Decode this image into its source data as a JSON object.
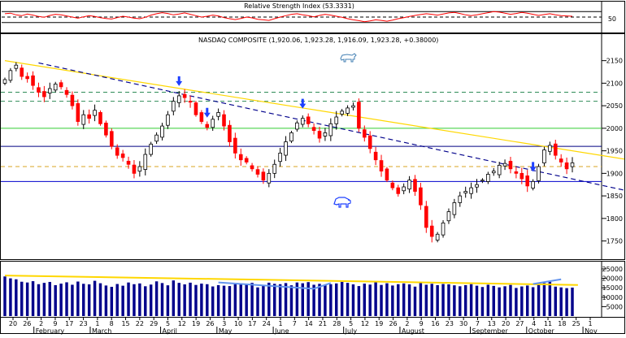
{
  "chart_data": [
    {
      "type": "line",
      "title": "Relative Strength Index (53.3331)",
      "ylim": [
        0,
        100
      ],
      "reference_lines": [
        70,
        50,
        30
      ],
      "y_ticks": [
        "50"
      ],
      "series": [
        {
          "values": [
            62,
            64,
            58,
            55,
            61,
            57,
            52,
            49,
            56,
            60,
            58,
            54,
            50,
            46,
            51,
            55,
            52,
            48,
            45,
            43,
            48,
            53,
            50,
            46,
            44,
            49,
            57,
            62,
            66,
            63,
            58,
            61,
            65,
            60,
            55,
            50,
            53,
            57,
            54,
            48,
            44,
            41,
            45,
            50,
            47,
            42,
            40,
            38,
            44,
            50,
            55,
            60,
            62,
            58,
            55,
            51,
            56,
            60,
            57,
            53,
            49,
            44,
            40,
            37,
            33,
            36,
            40,
            38,
            35,
            39,
            44,
            48,
            52,
            56,
            59,
            62,
            60,
            57,
            61,
            65,
            67,
            63,
            58,
            55,
            58,
            62,
            66,
            70,
            68,
            64,
            60,
            63,
            67,
            64,
            60,
            56,
            59,
            62,
            58,
            55,
            54,
            53
          ]
        }
      ]
    },
    {
      "type": "candlestick",
      "title": "NASDAQ COMPOSITE (1,920.06, 1,923.28, 1,916.09, 1,923.28, +0.38000)",
      "ylim": [
        1715,
        2180
      ],
      "y_ticks": [
        2150,
        2100,
        2050,
        2000,
        1950,
        1900,
        1850,
        1800,
        1750
      ],
      "grid": true,
      "horizontal_lines": [
        {
          "value": 2080,
          "style": "dashed",
          "color": "#2e8b57"
        },
        {
          "value": 2060,
          "style": "dashed",
          "color": "#2e8b57"
        },
        {
          "value": 2000,
          "style": "solid",
          "color": "#32cd32"
        },
        {
          "value": 1960,
          "style": "solid",
          "color": "#000080"
        },
        {
          "value": 1915,
          "style": "dashed",
          "color": "#daa520"
        },
        {
          "value": 1882,
          "style": "solid",
          "color": "#0000cd"
        }
      ],
      "trendlines": [
        {
          "from": [
            0,
            2150
          ],
          "to": [
            102,
            1948
          ],
          "color": "#ffd700",
          "style": "solid"
        },
        {
          "from": [
            6,
            2145
          ],
          "to": [
            102,
            1885
          ],
          "color": "#00008b",
          "style": "dashed"
        }
      ],
      "closes": [
        2108,
        2128,
        2140,
        2115,
        2110,
        2095,
        2080,
        2070,
        2088,
        2098,
        2092,
        2075,
        2050,
        2015,
        2030,
        2022,
        2040,
        2010,
        1985,
        1960,
        1940,
        1935,
        1920,
        1900,
        1915,
        1942,
        1965,
        1985,
        2005,
        2030,
        2060,
        2072,
        2068,
        2058,
        2030,
        2015,
        2002,
        2020,
        2035,
        2005,
        1970,
        1945,
        1930,
        1925,
        1910,
        1898,
        1885,
        1900,
        1920,
        1945,
        1970,
        1990,
        2012,
        2022,
        2010,
        1995,
        1978,
        1990,
        2010,
        2025,
        2038,
        2045,
        2050,
        2000,
        1980,
        1955,
        1930,
        1905,
        1885,
        1868,
        1855,
        1870,
        1885,
        1860,
        1830,
        1780,
        1760,
        1765,
        1790,
        1815,
        1835,
        1850,
        1860,
        1868,
        1875,
        1885,
        1898,
        1905,
        1918,
        1922,
        1910,
        1900,
        1888,
        1872,
        1882,
        1915,
        1952,
        1962,
        1940,
        1925,
        1910,
        1923.28
      ]
    },
    {
      "type": "bar",
      "title": "",
      "ylim": [
        0,
        28000
      ],
      "y_ticks": [
        25000,
        20000,
        15000,
        10000,
        5000
      ],
      "series": [
        {
          "values": [
            21000,
            20000,
            19500,
            18200,
            17800,
            18500,
            16900,
            17600,
            18100,
            16400,
            17200,
            17900,
            16600,
            18300,
            17100,
            16800,
            18700,
            17400,
            16200,
            15500,
            17000,
            16100,
            17800,
            16900,
            17300,
            15800,
            16700,
            18400,
            17500,
            16300,
            18900,
            17600,
            16800,
            17700,
            16500,
            17200,
            16900,
            15700,
            16400,
            16100,
            15900,
            16800,
            17300,
            16700,
            17600,
            15200,
            16500,
            17700,
            17100,
            16900,
            17500,
            16300,
            17800,
            17400,
            18000,
            16600,
            17100,
            16400,
            16900,
            17300,
            18100,
            17600,
            16800,
            15900,
            17200,
            16700,
            17900,
            16500,
            17400,
            16200,
            16900,
            17300,
            16800,
            15600,
            17500,
            16600,
            17100,
            16400,
            17000,
            16800,
            16300,
            15800,
            16400,
            16900,
            16100,
            15400,
            16600,
            16000,
            15200,
            15800,
            16500,
            14900,
            15700,
            16200,
            15300,
            16800,
            17500,
            18200,
            15600,
            15200,
            14800,
            15100
          ]
        }
      ],
      "overlay_lines": [
        {
          "from": [
            0,
            21500
          ],
          "to": [
            102,
            16500
          ],
          "color": "#ffd700"
        },
        {
          "from": [
            38,
            17800
          ],
          "to": [
            55,
            14500
          ],
          "color": "#6495ed"
        },
        {
          "from": [
            55,
            14500
          ],
          "to": [
            58,
            17500
          ],
          "color": "#6495ed"
        },
        {
          "from": [
            94,
            17000
          ],
          "to": [
            99,
            19500
          ],
          "color": "#6495ed"
        }
      ]
    }
  ],
  "x_axis": {
    "date_labels": [
      "20",
      "26",
      "2",
      "9",
      "17",
      "23",
      "1",
      "8",
      "15",
      "22",
      "29",
      "5",
      "12",
      "19",
      "26",
      "3",
      "10",
      "17",
      "24",
      "1",
      "7",
      "14",
      "21",
      "28",
      "5",
      "12",
      "19",
      "26",
      "2",
      "9",
      "16",
      "23",
      "30",
      "7",
      "13",
      "20",
      "27",
      "4",
      "11",
      "18",
      "25",
      "1"
    ],
    "month_labels": [
      "February",
      "March",
      "April",
      "May",
      "June",
      "July",
      "August",
      "September",
      "October",
      "Nov"
    ]
  },
  "annotations": {
    "arrow_icon": "down-arrow-icon",
    "bull_icon": "bull-icon",
    "bear_icon": "bear-icon"
  },
  "colors": {
    "up_candle": "#000000",
    "down_candle": "#ff0000",
    "rsi_line": "#ff0000",
    "volume_bar": "#00008b",
    "arrow": "#1e40ff"
  }
}
